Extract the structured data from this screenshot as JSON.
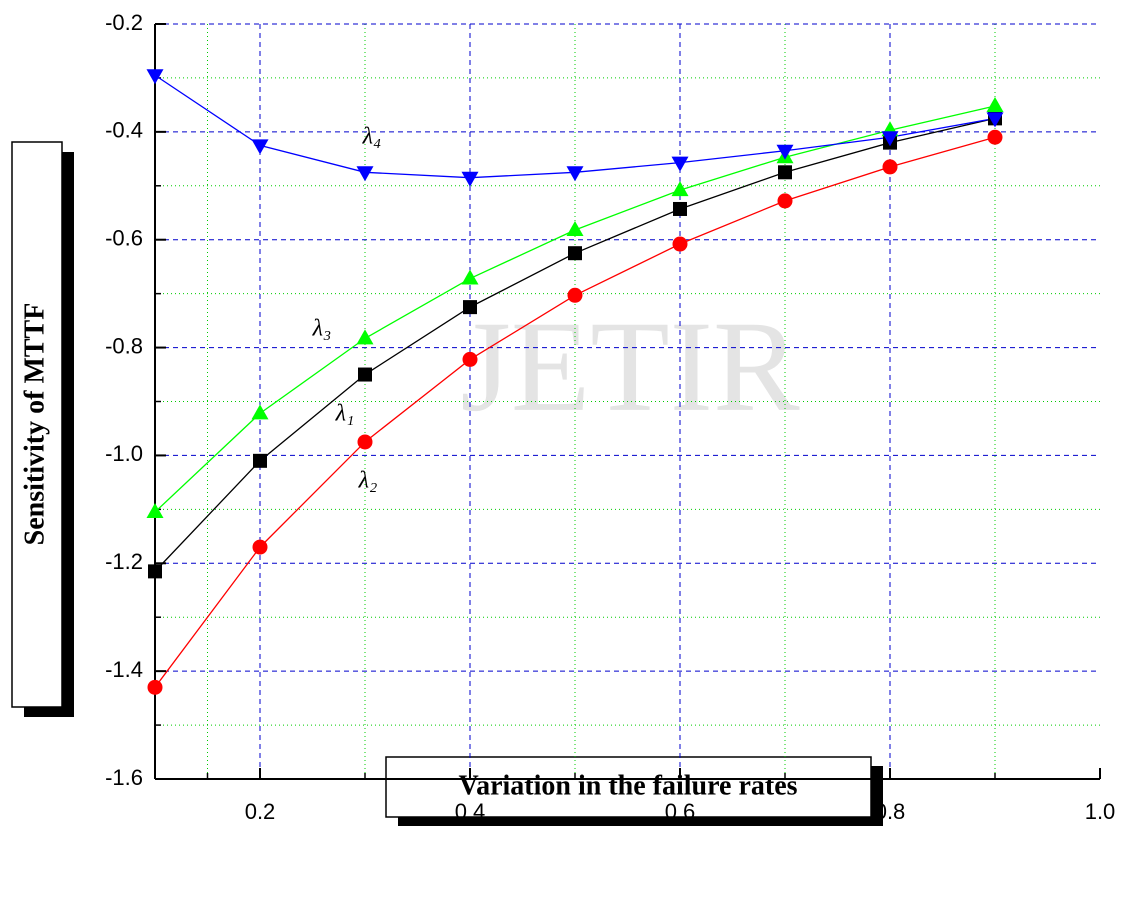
{
  "chart_data": {
    "type": "line",
    "watermark": "JETIR",
    "x_label": "Variation in the failure rates",
    "y_label": "Sensitivity of MTTF",
    "x": [
      0.1,
      0.2,
      0.3,
      0.4,
      0.5,
      0.6,
      0.7,
      0.8,
      0.9
    ],
    "series": [
      {
        "name": "λ₁",
        "color": "#000000",
        "marker": "square",
        "values": [
          -1.215,
          -1.01,
          -0.85,
          -0.725,
          -0.625,
          -0.543,
          -0.475,
          -0.42,
          -0.375
        ]
      },
      {
        "name": "λ₂",
        "color": "#ff0000",
        "marker": "circle",
        "values": [
          -1.43,
          -1.17,
          -0.975,
          -0.822,
          -0.703,
          -0.608,
          -0.528,
          -0.465,
          -0.41
        ]
      },
      {
        "name": "λ₃",
        "color": "#00ff00",
        "marker": "triangle-up",
        "values": [
          -1.105,
          -0.922,
          -0.783,
          -0.672,
          -0.582,
          -0.508,
          -0.447,
          -0.397,
          -0.352
        ]
      },
      {
        "name": "λ₄",
        "color": "#0000ff",
        "marker": "triangle-down",
        "values": [
          -0.295,
          -0.425,
          -0.475,
          -0.485,
          -0.475,
          -0.457,
          -0.435,
          -0.41,
          -0.375
        ]
      }
    ],
    "xlim": [
      0.1,
      1.0
    ],
    "ylim": [
      -1.6,
      -0.2
    ],
    "xticks": [
      0.2,
      0.4,
      0.6,
      0.8,
      {
        "value": 1.0,
        "label": "1.0"
      }
    ],
    "yticks": [
      -1.6,
      -1.4,
      -1.2,
      {
        "value": -1.0,
        "label": "-1.0"
      },
      -0.8,
      -0.6,
      -0.4,
      -0.2
    ],
    "grid": true
  }
}
